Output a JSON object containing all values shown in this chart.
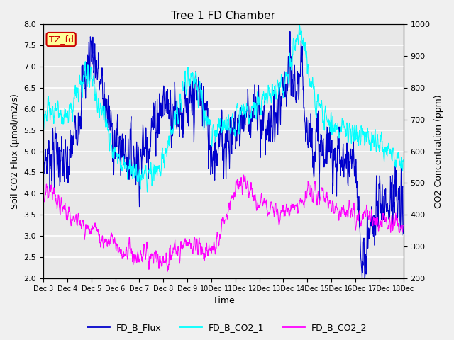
{
  "title": "Tree 1 FD Chamber",
  "xlabel": "Time",
  "ylabel_left": "Soil CO2 Flux (μmol/m2/s)",
  "ylabel_right": "CO2 Concentration (ppm)",
  "ylim_left": [
    2.0,
    8.0
  ],
  "ylim_right": [
    200,
    1000
  ],
  "annotation_text": "TZ_fd",
  "annotation_bg": "#FFFF99",
  "annotation_border": "#CC0000",
  "color_flux": "#0000CC",
  "color_co2_1": "#00FFFF",
  "color_co2_2": "#FF00FF",
  "legend_labels": [
    "FD_B_Flux",
    "FD_B_CO2_1",
    "FD_B_CO2_2"
  ],
  "plot_bg": "#E8E8E8",
  "fig_bg": "#F0F0F0",
  "grid_color": "#FFFFFF",
  "n_days": 15,
  "pts_per_day": 96,
  "seed": 7
}
